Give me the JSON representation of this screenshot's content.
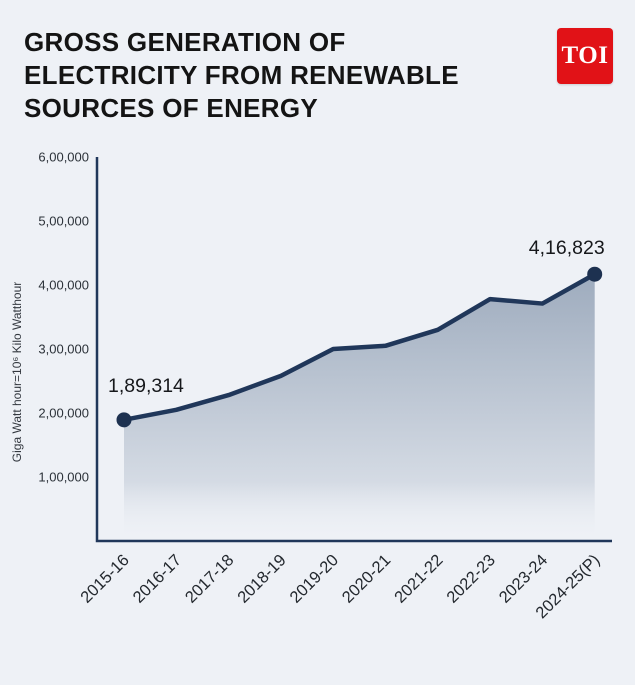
{
  "header": {
    "title": "GROSS GENERATION OF ELECTRICITY FROM RENEWABLE SOURCES OF ENERGY",
    "logo_text": "TOI"
  },
  "colors": {
    "background": "#eef1f6",
    "line": "#20375a",
    "axis": "#20375a",
    "dot": "#1d3150",
    "area_top": "#93a2b6",
    "area_bottom": "#eef1f6",
    "title_text": "#141414",
    "tick_text": "#2b3138",
    "annotation_text": "#16181b",
    "logo_bg": "#e11217",
    "logo_text_color": "#ffffff"
  },
  "chart_data": {
    "type": "area",
    "title": "GROSS GENERATION OF ELECTRICITY FROM RENEWABLE SOURCES OF ENERGY",
    "xlabel": "",
    "ylabel": "Giga Watt hour=10⁶ Kilo Watthour",
    "categories": [
      "2015-16",
      "2016-17",
      "2017-18",
      "2018-19",
      "2019-20",
      "2020-21",
      "2021-22",
      "2022-23",
      "2023-24",
      "2024-25(P)"
    ],
    "values": [
      189314,
      205000,
      228000,
      258000,
      300000,
      305000,
      330000,
      378000,
      371000,
      416823
    ],
    "ylim": [
      0,
      600000
    ],
    "grid": false,
    "legend": false,
    "yticks": [
      {
        "label": "1,00,000",
        "value": 100000
      },
      {
        "label": "2,00,000",
        "value": 200000
      },
      {
        "label": "3,00,000",
        "value": 300000
      },
      {
        "label": "4,00,000",
        "value": 400000
      },
      {
        "label": "5,00,000",
        "value": 500000
      },
      {
        "label": "6,00,000",
        "value": 600000
      }
    ],
    "annotations": [
      {
        "text": "1,89,314",
        "point_index": 0
      },
      {
        "text": "4,16,823",
        "point_index": 9
      }
    ]
  }
}
